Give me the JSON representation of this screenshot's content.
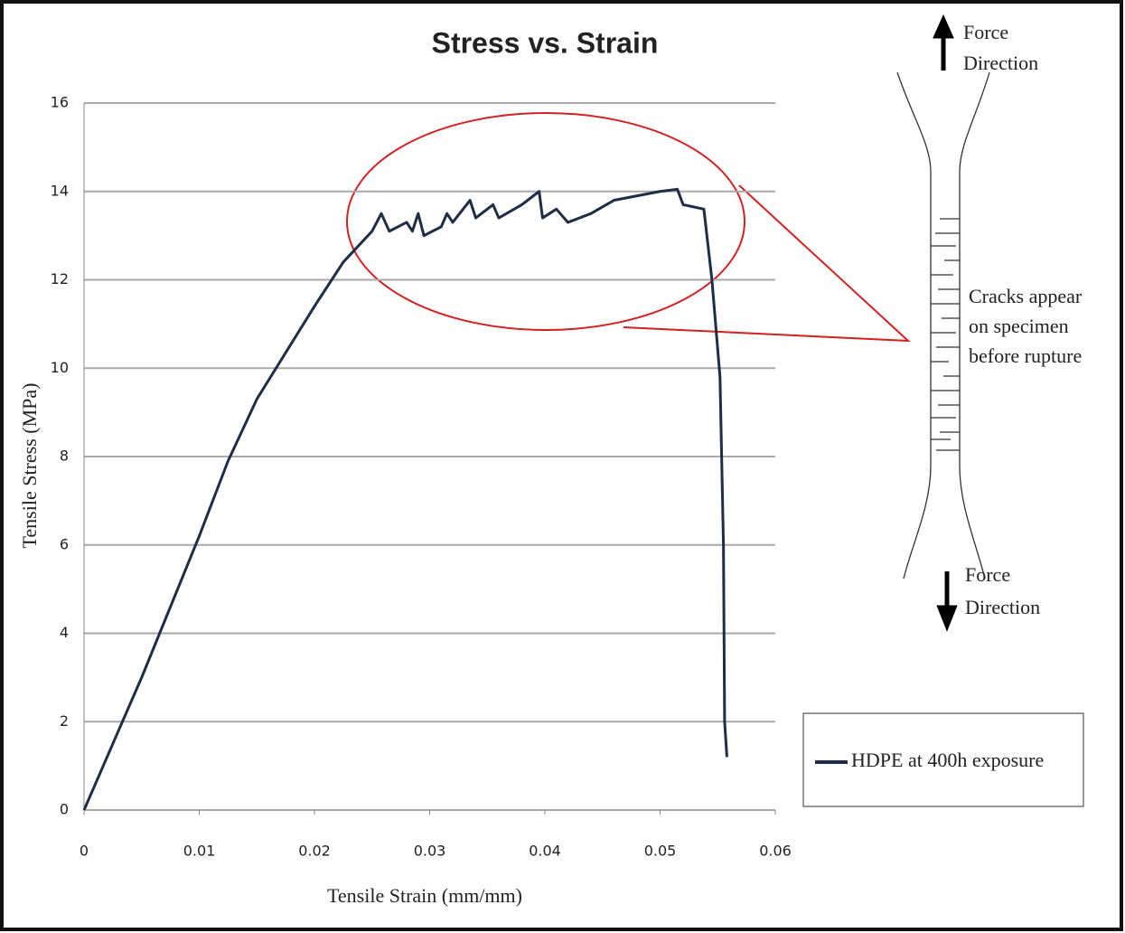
{
  "chart_data": {
    "type": "line",
    "title": "Stress vs. Strain",
    "x_label": "Tensile Strain (mm/mm)",
    "y_label": "Tensile Stress (MPa)",
    "x": [
      0,
      0.005,
      0.01,
      0.0125,
      0.015,
      0.02,
      0.0225,
      0.025,
      0.0258,
      0.0265,
      0.028,
      0.0285,
      0.029,
      0.0295,
      0.031,
      0.0315,
      0.032,
      0.0335,
      0.034,
      0.0355,
      0.036,
      0.038,
      0.0395,
      0.0398,
      0.041,
      0.042,
      0.044,
      0.046,
      0.048,
      0.05,
      0.0515,
      0.052,
      0.0538,
      0.0545,
      0.0552,
      0.0555,
      0.0556,
      0.0558
    ],
    "series": [
      {
        "name": "HDPE at 400h exposure",
        "color": "#1f2d45",
        "values": [
          0,
          3,
          6.2,
          7.9,
          9.3,
          11.4,
          12.4,
          13.1,
          13.5,
          13.1,
          13.3,
          13.1,
          13.5,
          13.0,
          13.2,
          13.5,
          13.3,
          13.8,
          13.4,
          13.7,
          13.4,
          13.7,
          14.0,
          13.4,
          13.6,
          13.3,
          13.5,
          13.8,
          13.9,
          14.0,
          14.05,
          13.7,
          13.6,
          12.0,
          9.8,
          6,
          2,
          1.2
        ]
      }
    ],
    "xlim": [
      0,
      0.06
    ],
    "xticks": [
      0,
      0.01,
      0.02,
      0.03,
      0.04,
      0.05,
      0.06
    ],
    "ylim": [
      0,
      16
    ],
    "yticks": [
      0,
      2,
      4,
      6,
      8,
      10,
      12,
      14,
      16
    ],
    "grid": true,
    "annotations": [
      [
        "Force",
        "Direction"
      ],
      [
        "Cracks appear",
        "on specimen",
        "before rupture"
      ],
      [
        "Force",
        "Direction"
      ]
    ]
  }
}
